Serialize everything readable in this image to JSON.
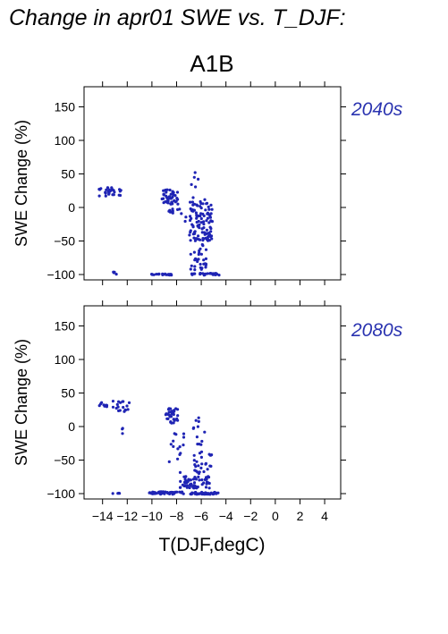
{
  "title": "Change in apr01 SWE vs. T_DJF:",
  "colors": {
    "points": "#1f24b4",
    "panel_label": "#2a33b0",
    "axis": "#000000"
  },
  "chart_data": [
    {
      "type": "scatter",
      "scenario": "A1B",
      "panel_label": "2040s",
      "xlabel": "T(DJF,degC)",
      "ylabel": "SWE Change (%)",
      "xlim": [
        -15.5,
        5.3
      ],
      "ylim": [
        -108,
        180
      ],
      "x_ticks": [
        -14,
        -12,
        -10,
        -8,
        -6,
        -4,
        -2,
        0,
        2,
        4
      ],
      "y_ticks": [
        -100,
        -50,
        0,
        50,
        100,
        150
      ],
      "clusters": [
        {
          "x": [
            -14.3,
            -12.5
          ],
          "y": [
            17,
            30
          ],
          "n": 28
        },
        {
          "x": [
            -13.4,
            -12.7
          ],
          "y": [
            -100,
            -96
          ],
          "n": 4
        },
        {
          "x": [
            -10.2,
            -8.2
          ],
          "y": [
            -101,
            -99
          ],
          "n": 22
        },
        {
          "x": [
            -9.2,
            -7.9
          ],
          "y": [
            5,
            28
          ],
          "n": 45
        },
        {
          "x": [
            -8.8,
            -7.6
          ],
          "y": [
            -10,
            -2
          ],
          "n": 10
        },
        {
          "x": [
            -7.3,
            -5.1
          ],
          "y": [
            -50,
            15
          ],
          "n": 110
        },
        {
          "x": [
            -6.9,
            -5.6
          ],
          "y": [
            -95,
            -55
          ],
          "n": 30
        },
        {
          "x": [
            -6.8,
            -4.5
          ],
          "y": [
            -101,
            -98
          ],
          "n": 28
        },
        {
          "x": [
            -6.8,
            -6.2
          ],
          "y": [
            25,
            54
          ],
          "n": 5
        }
      ]
    },
    {
      "type": "scatter",
      "scenario": "A1B",
      "panel_label": "2080s",
      "xlabel": "T(DJF,degC)",
      "ylabel": "SWE Change (%)",
      "xlim": [
        -15.5,
        5.3
      ],
      "ylim": [
        -108,
        180
      ],
      "x_ticks": [
        -14,
        -12,
        -10,
        -8,
        -6,
        -4,
        -2,
        0,
        2,
        4
      ],
      "y_ticks": [
        -100,
        -50,
        0,
        50,
        100,
        150
      ],
      "clusters": [
        {
          "x": [
            -14.4,
            -11.8
          ],
          "y": [
            22,
            38
          ],
          "n": 26
        },
        {
          "x": [
            -12.5,
            -12.3
          ],
          "y": [
            -16,
            -2
          ],
          "n": 3
        },
        {
          "x": [
            -13.3,
            -12.3
          ],
          "y": [
            -100,
            -99
          ],
          "n": 4
        },
        {
          "x": [
            -10.2,
            -7.3
          ],
          "y": [
            -101,
            -97
          ],
          "n": 45
        },
        {
          "x": [
            -8.9,
            -7.8
          ],
          "y": [
            5,
            27
          ],
          "n": 35
        },
        {
          "x": [
            -8.6,
            -7.4
          ],
          "y": [
            -70,
            -10
          ],
          "n": 15
        },
        {
          "x": [
            -7.8,
            -5.3
          ],
          "y": [
            -92,
            -74
          ],
          "n": 55
        },
        {
          "x": [
            -6.6,
            -5.1
          ],
          "y": [
            -70,
            -35
          ],
          "n": 25
        },
        {
          "x": [
            -6.7,
            -5.7
          ],
          "y": [
            -30,
            18
          ],
          "n": 12
        },
        {
          "x": [
            -6.9,
            -4.5
          ],
          "y": [
            -101,
            -98
          ],
          "n": 45
        }
      ]
    }
  ],
  "tick_labels": {
    "x": [
      "−14",
      "−12",
      "−10",
      "−8",
      "−6",
      "−4",
      "−2",
      "0",
      "2",
      "4"
    ],
    "y": [
      "−100",
      "−50",
      "0",
      "50",
      "100",
      "150"
    ]
  }
}
